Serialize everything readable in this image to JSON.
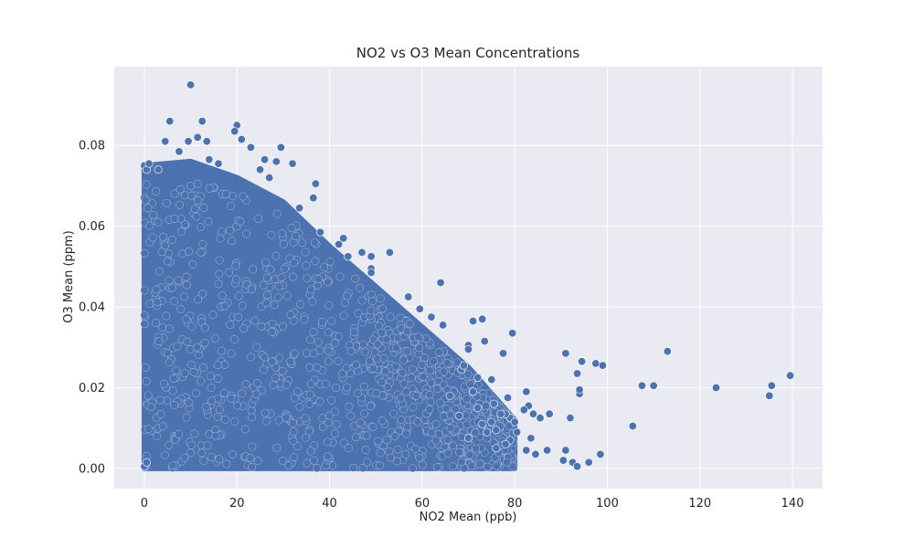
{
  "chart_data": {
    "type": "scatter",
    "title": "NO2 vs O3 Mean Concentrations",
    "xlabel": "NO2 Mean (ppb)",
    "ylabel": "O3 Mean (ppm)",
    "xlim": [
      -6.5,
      146.5
    ],
    "ylim": [
      -0.005,
      0.0995
    ],
    "xticks": [
      0,
      20,
      40,
      60,
      80,
      100,
      120,
      140
    ],
    "yticks": [
      0.0,
      0.02,
      0.04,
      0.06,
      0.08
    ],
    "xtick_labels": [
      "0",
      "20",
      "40",
      "60",
      "80",
      "100",
      "120",
      "140"
    ],
    "ytick_labels": [
      "0.00",
      "0.02",
      "0.04",
      "0.06",
      "0.08"
    ],
    "grid": true,
    "background": "#EAEAF2",
    "marker_color": "#4C72B0",
    "marker_edge": "#FFFFFF",
    "dense_region_description_points": [
      [
        0,
        0.0
      ],
      [
        0,
        0.075
      ],
      [
        10,
        0.076
      ],
      [
        20,
        0.072
      ],
      [
        30,
        0.066
      ],
      [
        40,
        0.055
      ],
      [
        50,
        0.045
      ],
      [
        60,
        0.035
      ],
      [
        70,
        0.025
      ],
      [
        80,
        0.012
      ],
      [
        80,
        0.0
      ]
    ],
    "points": [
      [
        10,
        0.095
      ],
      [
        5.5,
        0.086
      ],
      [
        12.5,
        0.086
      ],
      [
        20,
        0.085
      ],
      [
        4.5,
        0.081
      ],
      [
        11.5,
        0.082
      ],
      [
        13.5,
        0.081
      ],
      [
        9.5,
        0.081
      ],
      [
        23,
        0.0795
      ],
      [
        29.5,
        0.0795
      ],
      [
        19.5,
        0.0835
      ],
      [
        21,
        0.0815
      ],
      [
        7.5,
        0.0785
      ],
      [
        32,
        0.0755
      ],
      [
        26,
        0.0765
      ],
      [
        28.5,
        0.076
      ],
      [
        37,
        0.0705
      ],
      [
        36.5,
        0.067
      ],
      [
        33.5,
        0.0645
      ],
      [
        38,
        0.0585
      ],
      [
        42,
        0.0555
      ],
      [
        43,
        0.057
      ],
      [
        44,
        0.0525
      ],
      [
        47,
        0.0535
      ],
      [
        49,
        0.0525
      ],
      [
        53,
        0.0535
      ],
      [
        49,
        0.0495
      ],
      [
        49,
        0.0485
      ],
      [
        64,
        0.046
      ],
      [
        57,
        0.0425
      ],
      [
        59.5,
        0.0395
      ],
      [
        62,
        0.0375
      ],
      [
        64.5,
        0.0355
      ],
      [
        71,
        0.0365
      ],
      [
        73,
        0.037
      ],
      [
        70,
        0.0305
      ],
      [
        73.5,
        0.0315
      ],
      [
        79.5,
        0.0335
      ],
      [
        77.5,
        0.0285
      ],
      [
        70,
        0.0295
      ],
      [
        68.5,
        0.0245
      ],
      [
        69,
        0.0255
      ],
      [
        72,
        0.0225
      ],
      [
        75,
        0.022
      ],
      [
        78.5,
        0.0175
      ],
      [
        71,
        0.019
      ],
      [
        75.5,
        0.016
      ],
      [
        82.5,
        0.019
      ],
      [
        83,
        0.0155
      ],
      [
        82,
        0.0145
      ],
      [
        84,
        0.0135
      ],
      [
        85.5,
        0.0125
      ],
      [
        87.5,
        0.0135
      ],
      [
        79,
        0.0125
      ],
      [
        80,
        0.0115
      ],
      [
        78,
        0.0135
      ],
      [
        75,
        0.0115
      ],
      [
        73,
        0.011
      ],
      [
        76,
        0.0095
      ],
      [
        80.5,
        0.009
      ],
      [
        83.5,
        0.0075
      ],
      [
        79,
        0.007
      ],
      [
        82.5,
        0.0045
      ],
      [
        84.5,
        0.0035
      ],
      [
        87,
        0.0045
      ],
      [
        91,
        0.0045
      ],
      [
        92.5,
        0.0015
      ],
      [
        93.5,
        0.0005
      ],
      [
        90.5,
        0.002
      ],
      [
        96,
        0.0015
      ],
      [
        98.5,
        0.0035
      ],
      [
        91,
        0.0285
      ],
      [
        92,
        0.0125
      ],
      [
        94.5,
        0.0265
      ],
      [
        93.5,
        0.0235
      ],
      [
        94,
        0.0185
      ],
      [
        94,
        0.0195
      ],
      [
        97.5,
        0.026
      ],
      [
        99,
        0.0255
      ],
      [
        105.5,
        0.0105
      ],
      [
        107.5,
        0.0205
      ],
      [
        110,
        0.0205
      ],
      [
        113,
        0.029
      ],
      [
        123.5,
        0.02
      ],
      [
        135,
        0.018
      ],
      [
        135.5,
        0.0205
      ],
      [
        139.5,
        0.023
      ],
      [
        74,
        0.009
      ],
      [
        76,
        0.005
      ],
      [
        78,
        0.006
      ],
      [
        70,
        0.0075
      ],
      [
        68,
        0.013
      ],
      [
        66,
        0.018
      ],
      [
        72,
        0.015
      ],
      [
        77,
        0.0135
      ],
      [
        0,
        0.0005
      ],
      [
        0.5,
        0.0015
      ],
      [
        0,
        0.075
      ],
      [
        0.5,
        0.074
      ],
      [
        1,
        0.0755
      ],
      [
        3,
        0.074
      ],
      [
        14,
        0.0765
      ],
      [
        16,
        0.0755
      ],
      [
        25,
        0.074
      ],
      [
        27,
        0.072
      ]
    ]
  }
}
